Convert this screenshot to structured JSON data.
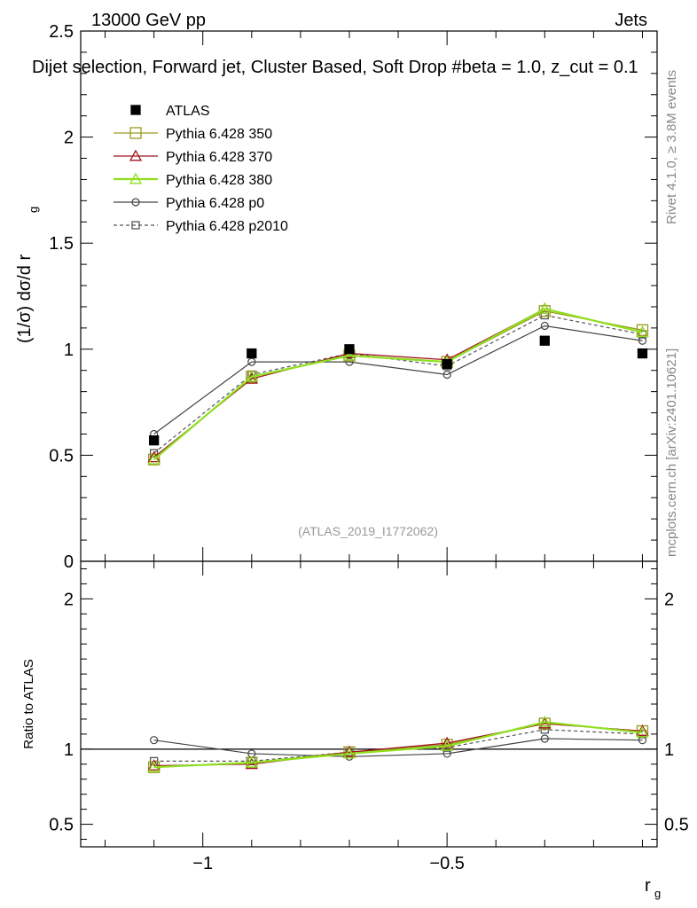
{
  "header": {
    "energy_label": "13000 GeV pp",
    "category_label": "Jets",
    "selection_title": "Dijet selection, Forward jet, Cluster Based, Soft Drop #beta = 1.0, z_cut = 0.1",
    "side_label_top": "Rivet 4.1.0, ≥ 3.8M events",
    "side_label_bottom": "mcplots.cern.ch [arXiv:2401.10621]",
    "analysis_id": "(ATLAS_2019_I1772062)"
  },
  "colors": {
    "atlas": "#000000",
    "p350": "#9a9a1e",
    "p370": "#a0141e",
    "p380": "#8ee01e",
    "p0": "#444444",
    "p2010": "#555555"
  },
  "chart_data": {
    "type": "line",
    "x": [
      -1.1,
      -0.9,
      -0.7,
      -0.5,
      -0.3,
      -0.1
    ],
    "xlim": [
      -1.25,
      -0.07
    ],
    "xticks": [
      -1,
      -0.5
    ],
    "xtick_labels": [
      "−1",
      "−0.5"
    ],
    "xlabel": "r",
    "xlabel_sub": "g",
    "main": {
      "ylabel": "(1/σ) dσ/d r",
      "ylabel_sub": "g",
      "ylim": [
        0,
        2.5
      ],
      "yticks": [
        0,
        0.5,
        1,
        1.5,
        2,
        2.5
      ],
      "ytick_labels": [
        "0",
        "0.5",
        "1",
        "1.5",
        "2",
        "2.5"
      ],
      "series": [
        {
          "id": "atlas",
          "name": "ATLAS",
          "values": [
            0.57,
            0.98,
            1.0,
            0.93,
            1.04,
            0.98
          ]
        },
        {
          "id": "p350",
          "name": "Pythia 6.428 350",
          "values": [
            0.48,
            0.87,
            0.97,
            0.94,
            1.18,
            1.09
          ]
        },
        {
          "id": "p370",
          "name": "Pythia 6.428 370",
          "values": [
            0.49,
            0.86,
            0.98,
            0.95,
            1.19,
            1.08
          ]
        },
        {
          "id": "p380",
          "name": "Pythia 6.428 380",
          "values": [
            0.48,
            0.87,
            0.97,
            0.94,
            1.19,
            1.08
          ]
        },
        {
          "id": "p0",
          "name": "Pythia 6.428 p0",
          "values": [
            0.6,
            0.94,
            0.94,
            0.88,
            1.11,
            1.04
          ]
        },
        {
          "id": "p2010",
          "name": "Pythia 6.428 p2010",
          "values": [
            0.51,
            0.88,
            0.98,
            0.92,
            1.16,
            1.07
          ]
        }
      ]
    },
    "ratio": {
      "ylabel": "Ratio to ATLAS",
      "ylim": [
        0.35,
        2.25
      ],
      "yticks": [
        0.5,
        1,
        2
      ],
      "ytick_labels": [
        "0.5",
        "1",
        "2"
      ],
      "series": [
        {
          "id": "p350",
          "name": "Pythia 6.428 350",
          "values": [
            0.88,
            0.91,
            0.98,
            1.03,
            1.17,
            1.12
          ]
        },
        {
          "id": "p370",
          "name": "Pythia 6.428 370",
          "values": [
            0.89,
            0.9,
            0.98,
            1.04,
            1.17,
            1.12
          ]
        },
        {
          "id": "p380",
          "name": "Pythia 6.428 380",
          "values": [
            0.88,
            0.91,
            0.97,
            1.02,
            1.18,
            1.11
          ]
        },
        {
          "id": "p0",
          "name": "Pythia 6.428 p0",
          "values": [
            1.06,
            0.97,
            0.95,
            0.97,
            1.07,
            1.06
          ]
        },
        {
          "id": "p2010",
          "name": "Pythia 6.428 p2010",
          "values": [
            0.92,
            0.92,
            0.98,
            1.01,
            1.13,
            1.1
          ]
        }
      ]
    }
  }
}
